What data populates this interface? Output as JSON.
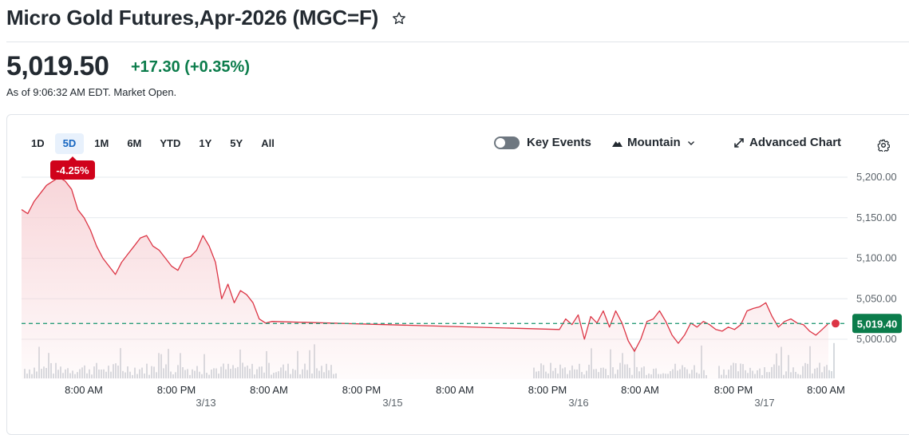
{
  "quote": {
    "title": "Micro Gold Futures,Apr-2026 (MGC=F)",
    "price": "5,019.50",
    "change": "+17.30 (+0.35%)",
    "as_of": "As of 9:06:32 AM EDT. Market Open."
  },
  "range_tabs": [
    "1D",
    "5D",
    "1M",
    "6M",
    "YTD",
    "1Y",
    "5Y",
    "All"
  ],
  "active_range": "5D",
  "controls": {
    "key_events": "Key Events",
    "chart_type": "Mountain",
    "advanced_chart": "Advanced Chart"
  },
  "icons": [
    "star-icon",
    "toggle-switch",
    "mountain-icon",
    "chevron-down-icon",
    "expand-arrows-icon",
    "gear-icon"
  ],
  "colors": {
    "line": "#dc3545",
    "fill": "#f7d1d5",
    "positive": "#0b7c4b",
    "current_label_bg": "#0b7c4b",
    "badge_bg": "#d0021b",
    "active_tab": "#1565c0"
  },
  "chart_data": {
    "type": "area",
    "series_label": "-4.25%",
    "current_price_label": "5,019.40",
    "previous_close_reference": 5019.4,
    "ylim": [
      4990,
      5210
    ],
    "y_ticks": [
      "5,200.00",
      "5,150.00",
      "5,100.00",
      "5,050.00",
      "5,000.00"
    ],
    "y_tick_values": [
      5200,
      5150,
      5100,
      5050,
      5000
    ],
    "x_time_labels": [
      "8:00 AM",
      "8:00 PM",
      "8:00 AM",
      "8:00 PM",
      "8:00 AM",
      "8:00 PM",
      "8:00 AM",
      "8:00 PM",
      "8:00 AM"
    ],
    "x_date_labels": [
      "3/13",
      "3/15",
      "3/16",
      "3/17"
    ],
    "points": [
      [
        0,
        5160
      ],
      [
        0.25,
        5155
      ],
      [
        0.5,
        5170
      ],
      [
        0.75,
        5180
      ],
      [
        1,
        5190
      ],
      [
        1.25,
        5195
      ],
      [
        1.5,
        5200
      ],
      [
        1.75,
        5195
      ],
      [
        2,
        5185
      ],
      [
        2.25,
        5160
      ],
      [
        2.5,
        5150
      ],
      [
        2.75,
        5135
      ],
      [
        3,
        5115
      ],
      [
        3.25,
        5100
      ],
      [
        3.5,
        5090
      ],
      [
        3.75,
        5080
      ],
      [
        4,
        5095
      ],
      [
        4.25,
        5105
      ],
      [
        4.5,
        5115
      ],
      [
        4.75,
        5125
      ],
      [
        5,
        5128
      ],
      [
        5.25,
        5115
      ],
      [
        5.5,
        5110
      ],
      [
        5.75,
        5100
      ],
      [
        6,
        5090
      ],
      [
        6.25,
        5085
      ],
      [
        6.5,
        5100
      ],
      [
        6.75,
        5102
      ],
      [
        7,
        5110
      ],
      [
        7.25,
        5128
      ],
      [
        7.5,
        5115
      ],
      [
        7.75,
        5095
      ],
      [
        8,
        5050
      ],
      [
        8.25,
        5068
      ],
      [
        8.5,
        5045
      ],
      [
        8.75,
        5060
      ],
      [
        9,
        5055
      ],
      [
        9.25,
        5045
      ],
      [
        9.5,
        5025
      ],
      [
        9.75,
        5020
      ],
      [
        10,
        5022
      ],
      [
        21.5,
        5012
      ],
      [
        21.75,
        5025
      ],
      [
        22,
        5018
      ],
      [
        22.25,
        5030
      ],
      [
        22.5,
        5000
      ],
      [
        22.75,
        5028
      ],
      [
        23,
        5020
      ],
      [
        23.25,
        5035
      ],
      [
        23.5,
        5015
      ],
      [
        23.75,
        5035
      ],
      [
        24,
        5020
      ],
      [
        24.25,
        4998
      ],
      [
        24.5,
        4985
      ],
      [
        24.75,
        5000
      ],
      [
        25,
        5022
      ],
      [
        25.25,
        5025
      ],
      [
        25.5,
        5035
      ],
      [
        25.75,
        5022
      ],
      [
        26,
        5005
      ],
      [
        26.25,
        4995
      ],
      [
        26.5,
        5005
      ],
      [
        26.75,
        5020
      ],
      [
        27,
        5015
      ],
      [
        27.25,
        5022
      ],
      [
        27.5,
        5018
      ],
      [
        27.75,
        5012
      ],
      [
        28,
        5010
      ],
      [
        28.25,
        5015
      ],
      [
        28.5,
        5012
      ],
      [
        28.75,
        5018
      ],
      [
        29,
        5035
      ],
      [
        29.25,
        5038
      ],
      [
        29.5,
        5040
      ],
      [
        29.75,
        5045
      ],
      [
        30,
        5028
      ],
      [
        30.25,
        5015
      ],
      [
        30.5,
        5022
      ],
      [
        30.75,
        5025
      ],
      [
        31,
        5020
      ],
      [
        31.25,
        5018
      ],
      [
        31.5,
        5010
      ],
      [
        31.75,
        5005
      ],
      [
        32,
        5012
      ],
      [
        32.25,
        5019.4
      ]
    ]
  }
}
